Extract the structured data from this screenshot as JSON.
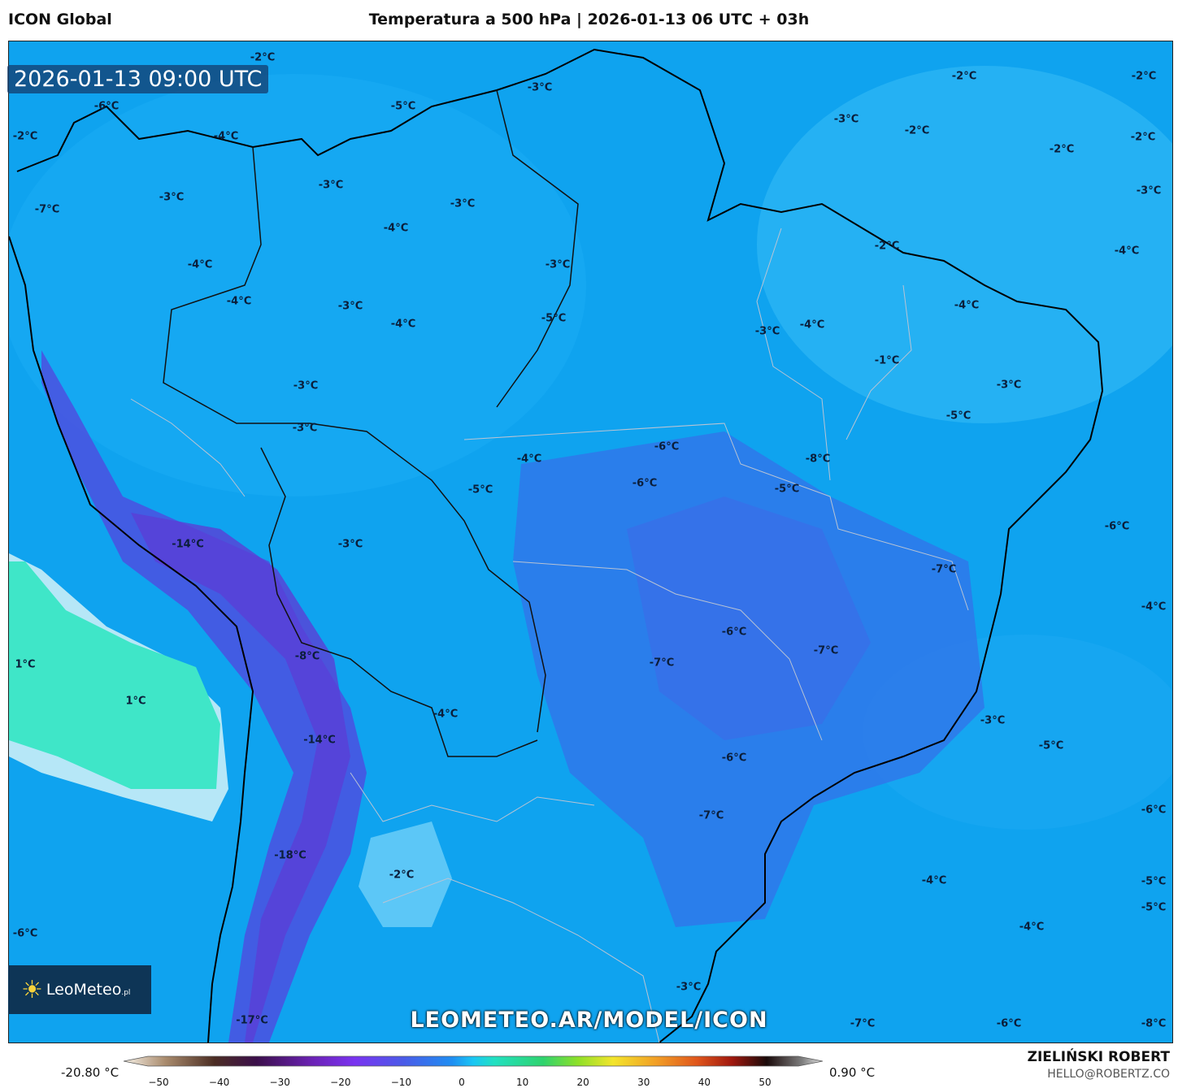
{
  "header": {
    "model": "ICON Global",
    "title": "Temperatura a 500 hPa | 2026-01-13 06 UTC + 03h"
  },
  "timestamp": "2026-01-13 09:00 UTC",
  "watermark": "LEOMETEO.AR/MODEL/ICON",
  "logo": {
    "brand": "LeoMeteo",
    "suffix": ".pl",
    "icon": "sun-icon"
  },
  "colorbar": {
    "min_label": "-20.80 °C",
    "max_label": "0.90 °C",
    "ticks": [
      "−50",
      "−40",
      "−30",
      "−20",
      "−10",
      "0",
      "10",
      "20",
      "30",
      "40",
      "50"
    ]
  },
  "credit": {
    "name": "ZIELIŃSKI ROBERT",
    "email": "HELLO@ROBERTZ.CO"
  },
  "temperature_labels": [
    "-2°C",
    "-6°C",
    "-2°C",
    "-4°C",
    "-7°C",
    "-3°C",
    "-5°C",
    "-3°C",
    "-3°C",
    "-3°C",
    "-4°C",
    "-4°C",
    "-3°C",
    "-4°C",
    "-3°C",
    "-5°C",
    "-4°C",
    "-2°C",
    "-2°C",
    "-3°C",
    "-2°C",
    "-2°C",
    "-2°C",
    "-3°C",
    "-4°C",
    "-2°C",
    "-4°C",
    "-3°C",
    "-3°C",
    "-4°C",
    "-1°C",
    "-3°C",
    "-5°C",
    "-3°C",
    "-6°C",
    "-6°C",
    "-4°C",
    "-5°C",
    "-5°C",
    "-8°C",
    "-3°C",
    "-14°C",
    "-7°C",
    "-6°C",
    "-6°C",
    "-7°C",
    "-7°C",
    "-4°C",
    "-8°C",
    "1°C",
    "1°C",
    "-4°C",
    "-14°C",
    "-3°C",
    "-5°C",
    "-6°C",
    "-6°C",
    "-7°C",
    "-18°C",
    "-2°C",
    "-4°C",
    "-5°C",
    "-5°C",
    "-4°C",
    "-6°C",
    "-3°C",
    "-17°C",
    "-7°C",
    "-6°C",
    "-8°C"
  ]
}
